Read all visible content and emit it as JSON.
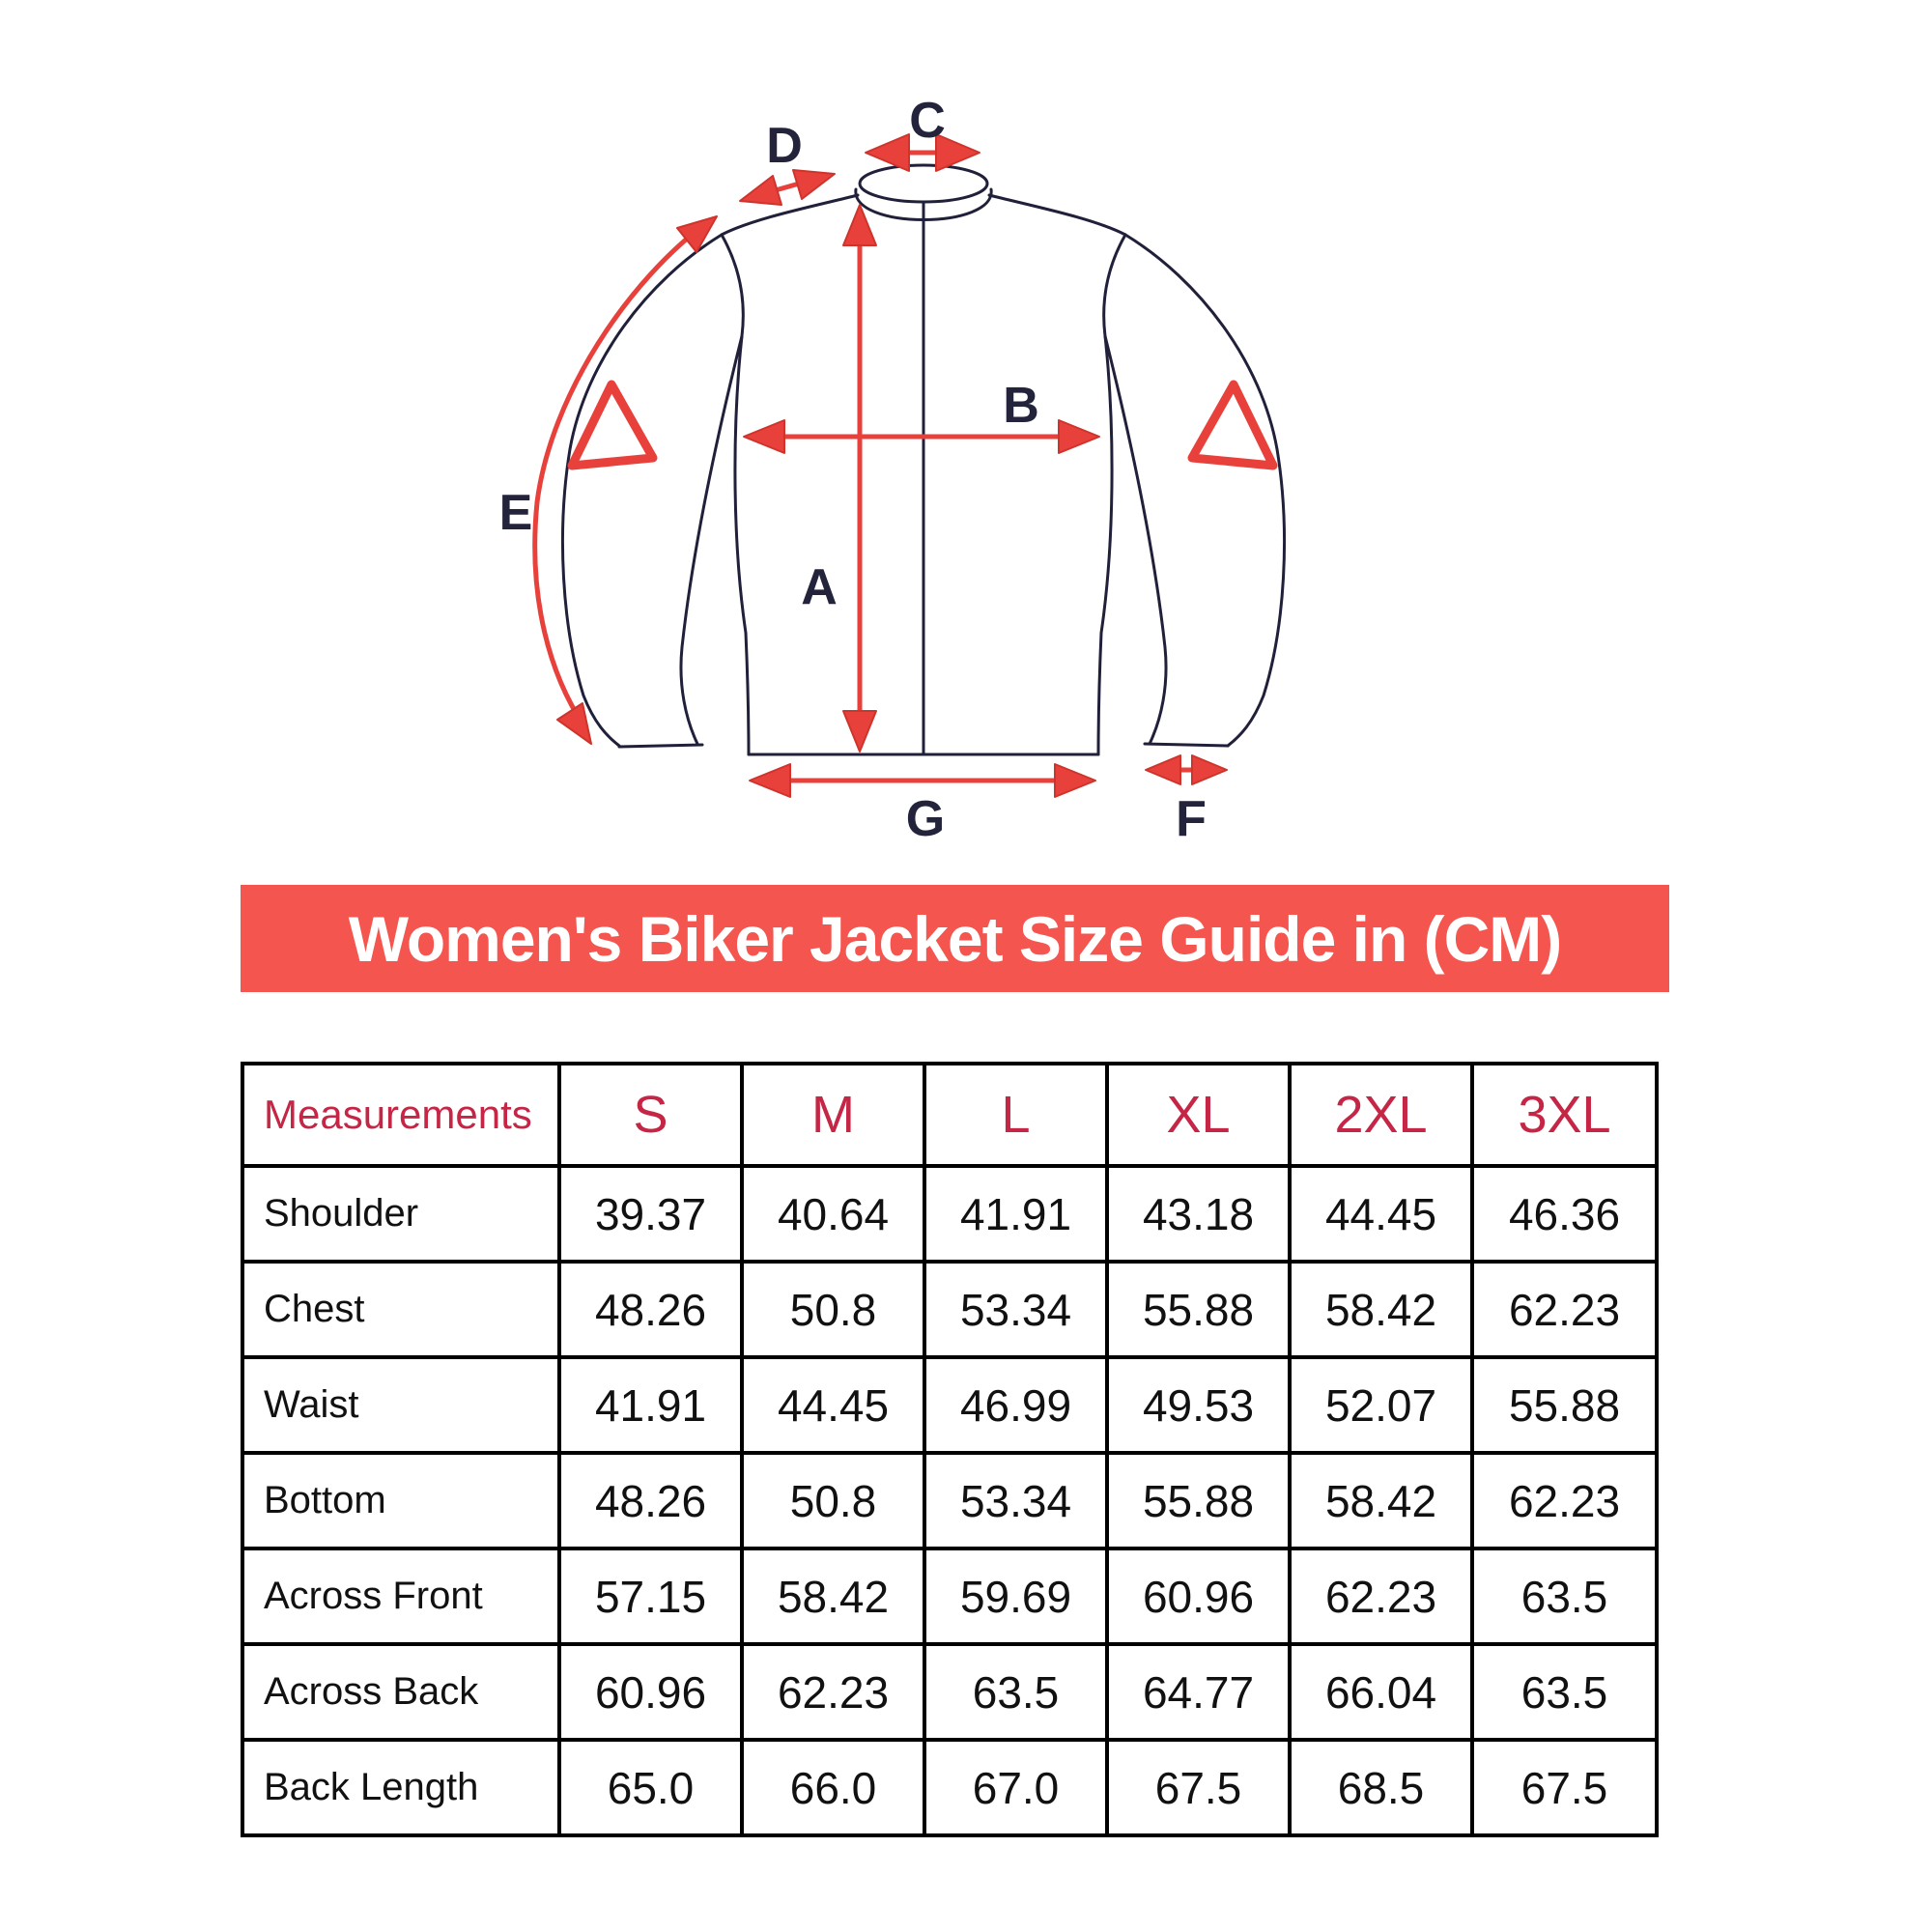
{
  "banner": {
    "title": "Women's Biker Jacket Size Guide in (CM)"
  },
  "diagram": {
    "description": "back view of women's biker jacket with measurement arrows",
    "labels": {
      "a": "A",
      "b": "B",
      "c": "C",
      "d": "D",
      "e": "E",
      "f": "F",
      "g": "G"
    }
  },
  "table": {
    "header": [
      "Measurements",
      "S",
      "M",
      "L",
      "XL",
      "2XL",
      "3XL"
    ],
    "rows": [
      {
        "label": "Shoulder",
        "values": [
          "39.37",
          "40.64",
          "41.91",
          "43.18",
          "44.45",
          "46.36"
        ]
      },
      {
        "label": "Chest",
        "values": [
          "48.26",
          "50.8",
          "53.34",
          "55.88",
          "58.42",
          "62.23"
        ]
      },
      {
        "label": "Waist",
        "values": [
          "41.91",
          "44.45",
          "46.99",
          "49.53",
          "52.07",
          "55.88"
        ]
      },
      {
        "label": "Bottom",
        "values": [
          "48.26",
          "50.8",
          "53.34",
          "55.88",
          "58.42",
          "62.23"
        ]
      },
      {
        "label": "Across Front",
        "values": [
          "57.15",
          "58.42",
          "59.69",
          "60.96",
          "62.23",
          "63.5"
        ]
      },
      {
        "label": "Across Back",
        "values": [
          "60.96",
          "62.23",
          "63.5",
          "64.77",
          "66.04",
          "63.5"
        ]
      },
      {
        "label": "Back Length",
        "values": [
          "65.0",
          "66.0",
          "67.0",
          "67.5",
          "68.5",
          "67.5"
        ]
      }
    ]
  },
  "colors": {
    "banner_bg": "#f4554f",
    "header_red": "#c62645",
    "arrow_red": "#e8413c",
    "arrow_red_dark": "#cf342c",
    "ink": "#20203a",
    "table_border": "#000000"
  }
}
